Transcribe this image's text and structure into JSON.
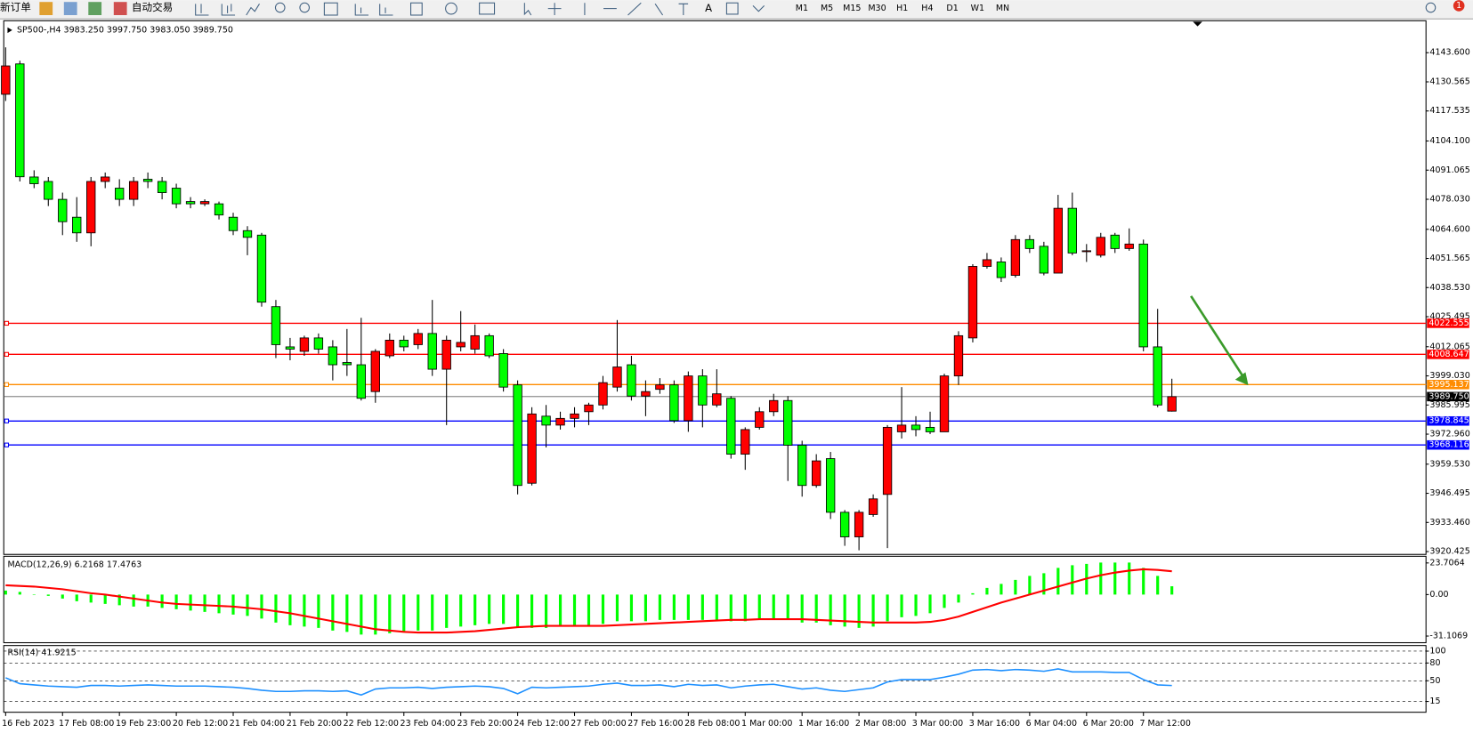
{
  "toolbar": {
    "new_order": "新订单",
    "auto_trading": "自动交易",
    "text_tool": "A",
    "timeframes": [
      "M1",
      "M5",
      "M15",
      "M30",
      "H1",
      "H4",
      "D1",
      "W1",
      "MN"
    ],
    "notifications": "1"
  },
  "chart_data": [
    {
      "type": "candlestick",
      "title": "SP500-,H4  3983.250 3997.750 3983.050 3989.750",
      "categories": [
        "16 Feb 2023",
        null,
        null,
        null,
        "17 Feb 08:00",
        null,
        null,
        null,
        "19 Feb 23:00",
        null,
        null,
        null,
        "20 Feb 12:00",
        null,
        null,
        null,
        "21 Feb 04:00",
        null,
        null,
        null,
        "21 Feb 20:00",
        null,
        null,
        null,
        "22 Feb 12:00",
        null,
        null,
        null,
        "23 Feb 04:00",
        null,
        null,
        null,
        "23 Feb 20:00",
        null,
        null,
        null,
        "24 Feb 12:00",
        null,
        null,
        null,
        "27 Feb 00:00",
        null,
        null,
        null,
        "27 Feb 16:00",
        null,
        null,
        null,
        "28 Feb 08:00",
        null,
        null,
        null,
        "1 Mar 00:00",
        null,
        null,
        null,
        "1 Mar 16:00",
        null,
        null,
        null,
        "2 Mar 08:00",
        null,
        null,
        null,
        "3 Mar 00:00",
        null,
        null,
        null,
        "3 Mar 16:00",
        null,
        null,
        null,
        "6 Mar 04:00",
        null,
        null,
        null,
        "6 Mar 20:00",
        null,
        null,
        null,
        "7 Mar 12:00",
        null,
        null
      ],
      "open": [
        4125,
        4138.6,
        4088,
        4086,
        4078,
        4070,
        4063,
        4086,
        4083,
        4078,
        4087,
        4086,
        4083,
        4077,
        4076,
        4076,
        4070,
        4064,
        4062,
        4030,
        4012,
        4010,
        4016,
        4012,
        4005,
        4004,
        3992,
        4008,
        4015,
        4013,
        4018,
        4002,
        4012,
        4011,
        4017,
        4009,
        3995,
        3951,
        3981,
        3977,
        3980,
        3983,
        3986,
        3994,
        4004,
        3990,
        3993,
        3995,
        3979,
        3999,
        3986,
        3989,
        3964,
        3976,
        3983,
        3988,
        3968,
        3950,
        3962,
        3938,
        3927,
        3937,
        3946,
        3974,
        3977,
        3976,
        3974,
        3999,
        4016,
        4048,
        4050,
        4044,
        4060,
        4057,
        4045,
        4074,
        4055,
        4053,
        4062,
        4056,
        4058,
        4012,
        3983.25
      ],
      "high": [
        4146,
        4140,
        4091,
        4088,
        4081,
        4079,
        4088,
        4090,
        4087,
        4088,
        4090,
        4088,
        4085,
        4079,
        4078,
        4077,
        4072,
        4066,
        4063,
        4033,
        4016,
        4017,
        4018,
        4015,
        4020,
        4025,
        4011,
        4018,
        4017,
        4020,
        4033,
        4017,
        4028,
        4022,
        4018,
        4011,
        3997,
        3985,
        3986,
        3983,
        3985,
        3987,
        3999,
        4024,
        4008,
        3997,
        3998,
        3997,
        4001,
        4002,
        4002,
        3990,
        3976,
        3985,
        3991,
        3990,
        3970,
        3964,
        3965,
        3939,
        3939,
        3946,
        3977,
        3994,
        3981,
        3983,
        4000,
        4019,
        4049,
        4054,
        4052,
        4062,
        4062,
        4059,
        4080,
        4081,
        4058,
        4063,
        4063,
        4065,
        4060,
        4029,
        3997.75
      ],
      "low": [
        4122,
        4086,
        4083,
        4075,
        4062,
        4059,
        4057,
        4083,
        4075,
        4075,
        4083,
        4078,
        4074,
        4074,
        4075,
        4069,
        4062,
        4053,
        4030,
        4007,
        4006,
        4008,
        4009,
        3997,
        3999,
        3988,
        3987,
        4007,
        4010,
        4011,
        3999,
        3977,
        4010,
        4009,
        4007,
        3992,
        3946,
        3950,
        3967,
        3975,
        3976,
        3977,
        3984,
        3992,
        3988,
        3981,
        3991,
        3978,
        3974,
        3976,
        3985,
        3962,
        3957,
        3975,
        3981,
        3952,
        3945,
        3949,
        3935,
        3923,
        3921,
        3936,
        3922,
        3971,
        3972,
        3973,
        3974,
        3995,
        4014,
        4047,
        4041,
        4043,
        4054,
        4044,
        4045,
        4053,
        4050,
        4052,
        4054,
        4055,
        4010,
        3985,
        3983.05
      ],
      "close": [
        4137.7,
        4088.1,
        4085,
        4078,
        4068,
        4063,
        4086,
        4088,
        4078,
        4086,
        4086,
        4081,
        4076,
        4076,
        4077,
        4071,
        4064,
        4061,
        4032,
        4013,
        4011,
        4016,
        4011,
        4004,
        4004,
        3989,
        4010,
        4015,
        4012,
        4018,
        4002,
        4015,
        4014,
        4017,
        4008,
        3994,
        3950,
        3982,
        3977,
        3980,
        3982,
        3986,
        3996,
        4003,
        3990,
        3992,
        3995,
        3979,
        3999,
        3986,
        3991,
        3964,
        3975,
        3983,
        3988,
        3968,
        3950,
        3961,
        3938,
        3927,
        3938,
        3944,
        3976,
        3977,
        3975,
        3974,
        3999,
        4017,
        4048,
        4051,
        4043,
        4060,
        4056,
        4045,
        4074,
        4054,
        4055,
        4061,
        4056,
        4058,
        4012,
        3986,
        3989.75
      ],
      "up_color": "#ff0000",
      "down_color": "#00ff00",
      "ylim": [
        3919.16,
        4157.05
      ],
      "yticks": [
        {
          "value": 4143.6,
          "label": "4143.600"
        },
        4130.565,
        4117.535,
        {
          "value": 4104.1,
          "label": "4104.100"
        },
        4091.065,
        {
          "value": 4078.03,
          "label": "4078.030"
        },
        {
          "value": 4064.6,
          "label": "4064.600"
        },
        4051.565,
        {
          "value": 4038.53,
          "label": "4038.530"
        },
        4025.495,
        4012.065,
        {
          "value": 3999.03,
          "label": "3999.030"
        },
        3985.995,
        {
          "value": 3972.96,
          "label": "3972.960"
        },
        {
          "value": 3959.53,
          "label": "3959.530"
        },
        3946.495,
        {
          "value": 3933.46,
          "label": "3933.460"
        },
        3920.425
      ],
      "levels": [
        {
          "value": 4022.555,
          "color": "#ff0000"
        },
        {
          "value": 4008.647,
          "color": "#ff0000"
        },
        {
          "value": 3995.137,
          "color": "#ff8c00"
        },
        {
          "value": 3978.845,
          "color": "#0000ff"
        },
        {
          "value": 3968.116,
          "color": "#0000ff"
        }
      ],
      "last_price": {
        "value": 3989.75,
        "label": "3989.750",
        "color": "#000000"
      }
    },
    {
      "type": "macd",
      "title": "MACD(12,26,9) 6.2168 17.4763",
      "ylim": [
        -35.4,
        28.0
      ],
      "yticks": [
        23.7064,
        {
          "value": 0,
          "label": "0.00"
        },
        -31.1069
      ],
      "series": [
        {
          "kind": "bar",
          "color": "#00ff00",
          "values": [
            3,
            2,
            0,
            -1,
            -3,
            -5,
            -6,
            -7,
            -8,
            -9,
            -9,
            -10,
            -11,
            -12,
            -13,
            -14,
            -15,
            -16,
            -18,
            -21,
            -23,
            -24,
            -25,
            -27,
            -28,
            -30,
            -30,
            -29,
            -28,
            -27,
            -27,
            -25,
            -24,
            -23,
            -22,
            -22,
            -25,
            -25,
            -25,
            -24,
            -24,
            -23,
            -22,
            -20,
            -20,
            -20,
            -19,
            -19,
            -19,
            -19,
            -19,
            -20,
            -20,
            -19,
            -18,
            -19,
            -21,
            -21,
            -23,
            -24,
            -25,
            -24,
            -20,
            -17,
            -16,
            -14,
            -10,
            -6,
            1,
            5,
            8,
            11,
            14,
            16,
            20,
            22,
            23,
            24,
            24,
            24,
            20,
            14,
            6.2168
          ]
        },
        {
          "kind": "line",
          "color": "#ff0000",
          "values": [
            7,
            6.5,
            6,
            5,
            4,
            2.5,
            1,
            0,
            -1.5,
            -3,
            -4.5,
            -6,
            -7,
            -7.5,
            -8,
            -8.5,
            -9,
            -10,
            -11,
            -12.5,
            -14,
            -16,
            -18,
            -20,
            -22,
            -24,
            -26,
            -27,
            -28,
            -28.5,
            -28.5,
            -28.5,
            -28,
            -27.5,
            -26.5,
            -25.5,
            -24.5,
            -24,
            -23.5,
            -23.5,
            -23.5,
            -23.5,
            -23.5,
            -23,
            -22.5,
            -22,
            -21.5,
            -21,
            -20.5,
            -20,
            -19.5,
            -19,
            -19,
            -18.5,
            -18.5,
            -18.5,
            -18.5,
            -19,
            -19.5,
            -20,
            -20.5,
            -21,
            -21,
            -21,
            -21,
            -20.5,
            -19,
            -16.5,
            -13,
            -9.5,
            -6,
            -3,
            0,
            3,
            6,
            9,
            12,
            14.5,
            16.5,
            18,
            19,
            18.5,
            17.4763
          ]
        }
      ]
    },
    {
      "type": "line",
      "title": "RSI(14) 41.9215",
      "ylim": [
        -3.2,
        107.9
      ],
      "yticks": [
        100,
        80,
        50,
        15
      ],
      "grid": true,
      "color": "#1e90ff",
      "values": [
        55,
        45,
        43,
        41,
        40,
        39,
        42,
        42,
        41,
        42,
        43,
        42,
        41,
        41,
        41,
        40,
        39,
        37,
        34,
        32,
        32,
        33,
        33,
        32,
        33,
        26,
        36,
        38,
        38,
        39,
        37,
        39,
        40,
        41,
        40,
        37,
        28,
        39,
        38,
        39,
        40,
        41,
        44,
        46,
        42,
        42,
        43,
        40,
        44,
        42,
        43,
        38,
        41,
        43,
        44,
        40,
        36,
        38,
        34,
        32,
        35,
        38,
        48,
        52,
        52,
        52,
        56,
        61,
        68,
        69,
        67,
        69,
        68,
        66,
        70,
        65,
        65,
        65,
        64,
        64,
        52,
        43,
        41.9215
      ]
    }
  ]
}
